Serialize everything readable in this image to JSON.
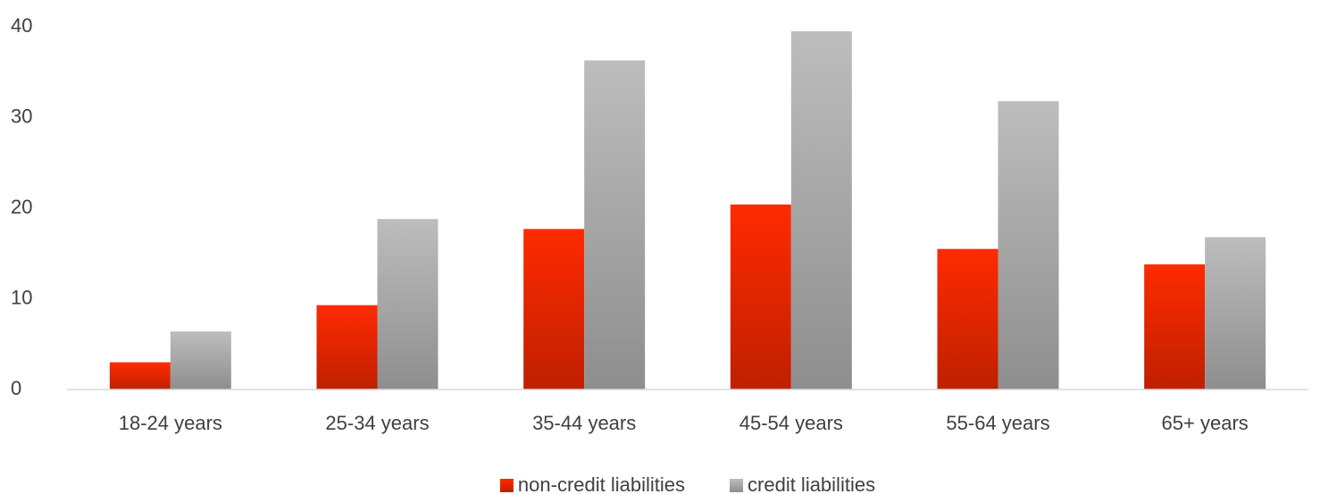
{
  "chart_data": {
    "type": "bar",
    "categories": [
      "18-24 years",
      "25-34 years",
      "35-44 years",
      "45-54 years",
      "55-64 years",
      "65+ years"
    ],
    "series": [
      {
        "name": "non-credit liabilities",
        "color": "#ff2a00",
        "values": [
          3.0,
          9.3,
          17.7,
          20.4,
          15.5,
          13.8
        ]
      },
      {
        "name": "credit liabilities",
        "color": "#bdbdbd",
        "values": [
          6.4,
          18.8,
          36.3,
          39.5,
          31.8,
          16.8
        ]
      }
    ],
    "ylim": [
      0,
      40
    ],
    "yticks": [
      0,
      10,
      20,
      30,
      40
    ],
    "grid": false,
    "legend": "bottom"
  }
}
